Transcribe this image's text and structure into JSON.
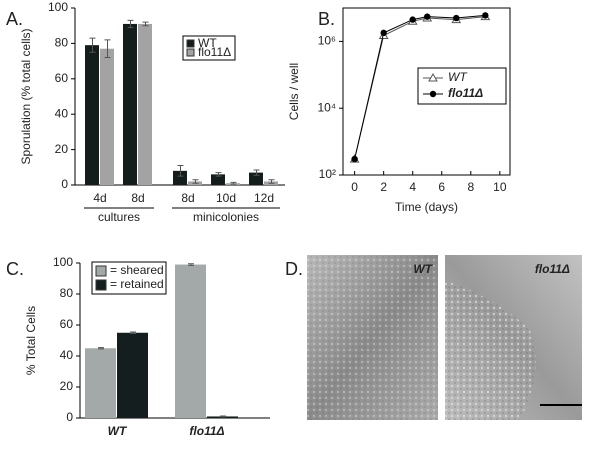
{
  "chart_data": [
    {
      "type": "bar",
      "panel": "A.",
      "y_label": "Sporulation (% total cells)",
      "categories": [
        "4d",
        "8d",
        "8d",
        "10d",
        "12d"
      ],
      "groups": [
        "cultures",
        "minicolonies"
      ],
      "series": [
        {
          "name": "WT",
          "color": "#141c1c",
          "values": [
            79,
            91,
            8,
            6,
            7
          ],
          "errors": [
            4,
            2,
            3,
            1,
            1.5
          ]
        },
        {
          "name": "flo11Δ",
          "color": "#a3a3a3",
          "values": [
            77,
            91,
            2,
            1,
            2
          ],
          "errors": [
            5,
            1,
            1,
            0.5,
            1
          ]
        }
      ],
      "ylim": [
        0,
        100
      ],
      "yticks": [
        0,
        20,
        40,
        60,
        80,
        100
      ],
      "legend": "upper-right"
    },
    {
      "type": "line",
      "panel": "B.",
      "x_label": "Time (days)",
      "y_label": "Cells / well",
      "log_y": true,
      "x": [
        0,
        2,
        4,
        5,
        7,
        9
      ],
      "series": [
        {
          "name": "WT",
          "color": "#555555",
          "marker": "open-triangle",
          "values": [
            300,
            1500000,
            4000000,
            5000000,
            4500000,
            5500000
          ]
        },
        {
          "name": "flo11Δ",
          "color": "#000000",
          "marker": "filled-circle",
          "values": [
            300,
            1800000,
            4500000,
            5500000,
            5000000,
            6000000
          ]
        }
      ],
      "xlim": [
        -0.8,
        10.7
      ],
      "xticks": [
        0,
        2,
        4,
        6,
        8,
        10
      ],
      "ylim": [
        100,
        10000000
      ],
      "yticks": [
        {
          "value": 100,
          "label": "10²"
        },
        {
          "value": 10000,
          "label": "10⁴"
        },
        {
          "value": 1000000,
          "label": "10⁶"
        }
      ],
      "legend": "upper-right"
    },
    {
      "type": "bar",
      "panel": "C.",
      "y_label": "% Total Cells",
      "categories": [
        "WT",
        "flo11Δ"
      ],
      "series": [
        {
          "name": "= sheared",
          "color": "#a3a8a8",
          "values": [
            45,
            99
          ],
          "errors": [
            0.4,
            0.5
          ]
        },
        {
          "name": "= retained",
          "color": "#151e1e",
          "values": [
            55,
            1
          ],
          "errors": [
            0.5,
            0.3
          ]
        }
      ],
      "ylim": [
        0,
        100
      ],
      "yticks": [
        0,
        20,
        40,
        60,
        80,
        100
      ],
      "legend": "upper-left"
    },
    {
      "type": "image",
      "panel": "D.",
      "labels": [
        "WT",
        "flo11Δ"
      ]
    }
  ]
}
